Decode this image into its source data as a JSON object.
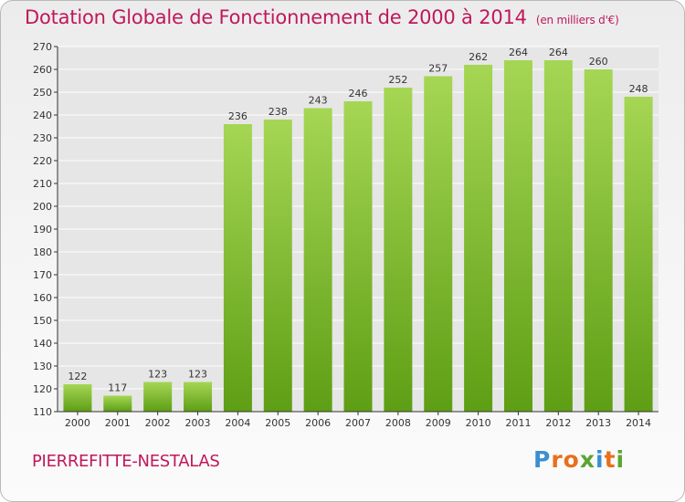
{
  "title": "Dotation Globale de Fonctionnement de 2000 à 2014",
  "subtitle": "(en milliers d'€)",
  "commune": "PIERREFITTE-NESTALAS",
  "logo": {
    "letters": [
      "P",
      "r",
      "o",
      "x",
      "i",
      "t",
      "i"
    ],
    "colors": [
      "#3a8fd0",
      "#e96f1c",
      "#e96f1c",
      "#5ba531",
      "#3a8fd0",
      "#e96f1c",
      "#5ba531"
    ]
  },
  "colors": {
    "title": "#c0185a",
    "bar_top": "#a5d654",
    "bar_bottom": "#5e9e15",
    "axis": "#333333",
    "grid": "#ffffff"
  },
  "chart_data": {
    "type": "bar",
    "categories": [
      "2000",
      "2001",
      "2002",
      "2003",
      "2004",
      "2005",
      "2006",
      "2007",
      "2008",
      "2009",
      "2010",
      "2011",
      "2012",
      "2013",
      "2014"
    ],
    "values": [
      122,
      117,
      123,
      123,
      236,
      238,
      243,
      246,
      252,
      257,
      262,
      264,
      264,
      260,
      248
    ],
    "ylim": [
      110,
      270
    ],
    "yticks": [
      110,
      120,
      130,
      140,
      150,
      160,
      170,
      180,
      190,
      200,
      210,
      220,
      230,
      240,
      250,
      260,
      270
    ],
    "grid": true,
    "data_labels": true
  }
}
